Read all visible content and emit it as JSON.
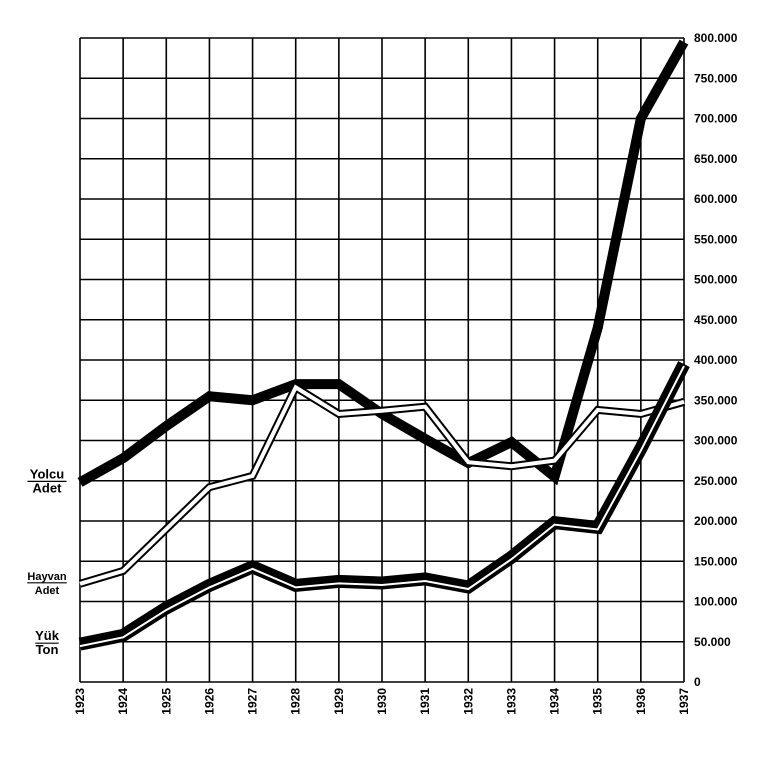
{
  "chart_data": {
    "type": "line",
    "title": "",
    "xlabel": "",
    "ylabel": "",
    "x": [
      "1923",
      "1924",
      "1925",
      "1926",
      "1927",
      "1928",
      "1929",
      "1930",
      "1931",
      "1932",
      "1933",
      "1934",
      "1935",
      "1936",
      "1937"
    ],
    "ylim": [
      0,
      800000
    ],
    "y_ticks": [
      "0",
      "50.000",
      "100.000",
      "150.000",
      "200.000",
      "250.000",
      "300.000",
      "350.000",
      "400.000",
      "450.000",
      "500.000",
      "550.000",
      "600.000",
      "650.000",
      "700.000",
      "750.000",
      "800.000"
    ],
    "grid": true,
    "y_axis_position": "right",
    "series": [
      {
        "name_top": "Yolcu",
        "name_bottom": "Adet",
        "style": "thick",
        "color": "#000000",
        "values": [
          248000,
          278000,
          318000,
          355000,
          350000,
          370000,
          370000,
          333000,
          302000,
          272000,
          298000,
          255000,
          440000,
          700000,
          795000
        ]
      },
      {
        "name_top": "Hayvan",
        "name_bottom": "Adet",
        "style": "double",
        "color": "#000000",
        "values": [
          122000,
          138000,
          190000,
          242000,
          256000,
          366000,
          333000,
          337000,
          342000,
          273000,
          268000,
          275000,
          338000,
          333000,
          348000
        ]
      },
      {
        "name_top": "Yük",
        "name_bottom": "Ton",
        "style": "thick-shadow",
        "color": "#000000",
        "values": [
          47000,
          58000,
          92000,
          120000,
          143000,
          120000,
          125000,
          123000,
          128000,
          118000,
          155000,
          198000,
          192000,
          290000,
          395000
        ]
      }
    ]
  }
}
